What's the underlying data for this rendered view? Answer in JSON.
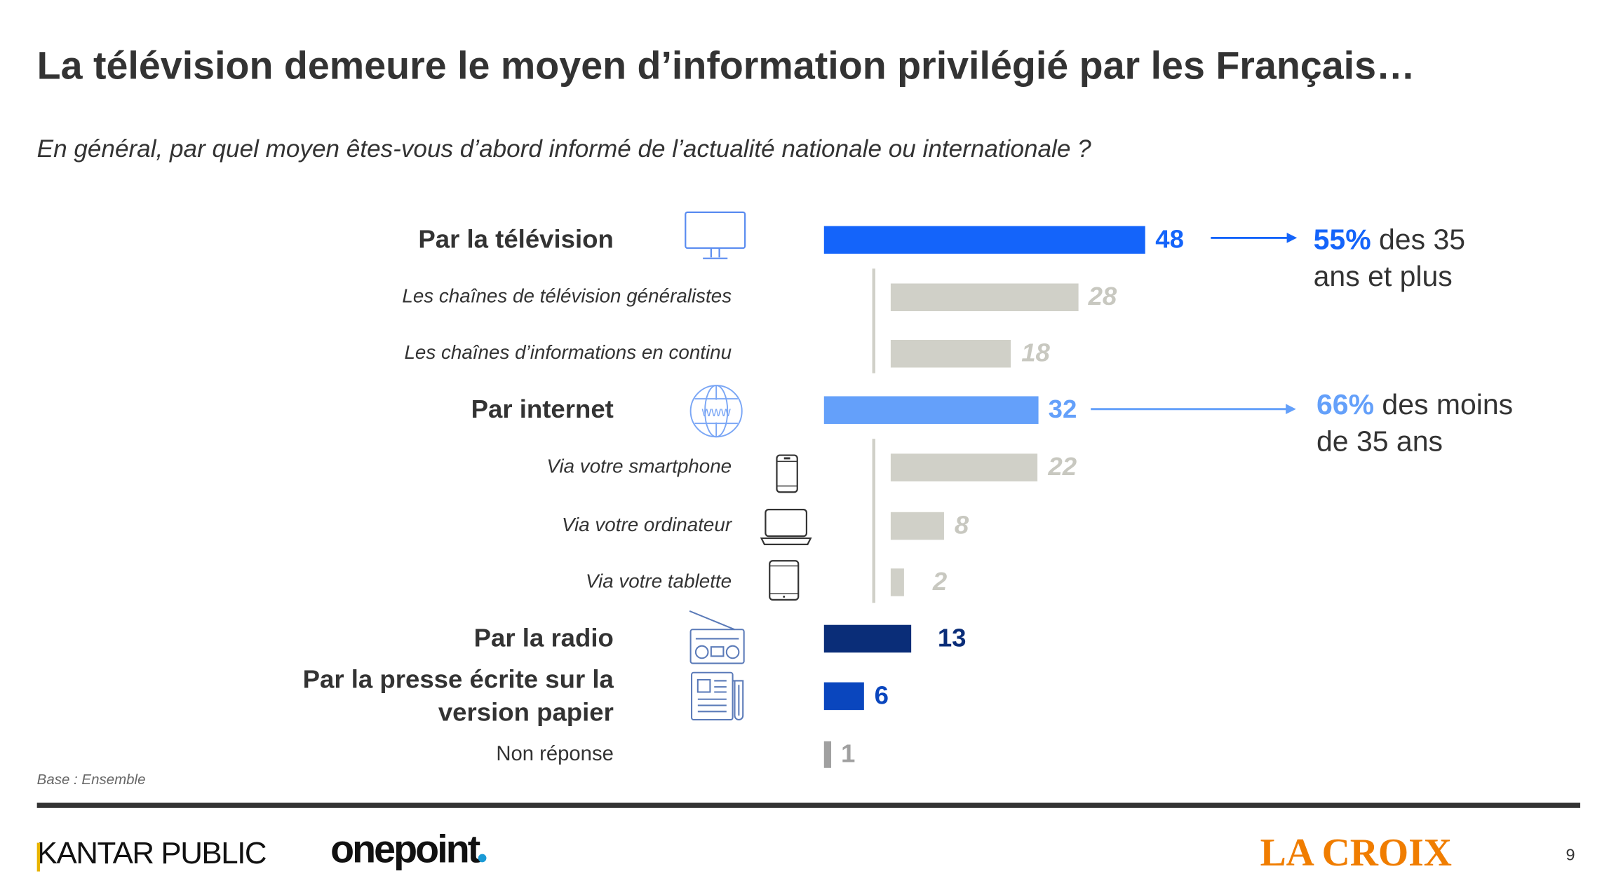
{
  "title": "La télévision demeure le moyen d’information privilégié par les Français…",
  "subtitle": "En général, par quel moyen êtes-vous d’abord informé de l’actualité nationale ou internationale ?",
  "chart_data": {
    "type": "bar",
    "orientation": "horizontal",
    "title": "En général, par quel moyen êtes-vous d’abord informé de l’actualité nationale ou internationale ?",
    "unit": "%",
    "categories": [
      {
        "label": "Par la télévision",
        "value": 48,
        "level": "main",
        "color": "#1464fa",
        "icon": "television-icon"
      },
      {
        "label": "Les chaînes de télévision généralistes",
        "value": 28,
        "level": "sub",
        "color": "#d0d0c8"
      },
      {
        "label": "Les chaînes d’informations en continu",
        "value": 18,
        "level": "sub",
        "color": "#d0d0c8"
      },
      {
        "label": "Par internet",
        "value": 32,
        "level": "main",
        "color": "#64a0fa",
        "icon": "globe-www-icon"
      },
      {
        "label": "Via votre smartphone",
        "value": 22,
        "level": "sub",
        "color": "#d0d0c8",
        "icon": "smartphone-icon"
      },
      {
        "label": "Via votre ordinateur",
        "value": 8,
        "level": "sub",
        "color": "#d0d0c8",
        "icon": "laptop-icon"
      },
      {
        "label": "Via votre tablette",
        "value": 2,
        "level": "sub",
        "color": "#d0d0c8",
        "icon": "tablet-icon"
      },
      {
        "label": "Par la radio",
        "value": 13,
        "level": "main",
        "color": "#0a2d78",
        "icon": "radio-icon"
      },
      {
        "label": "Par la presse écrite sur la version papier",
        "value": 6,
        "level": "main",
        "color": "#0a46be",
        "icon": "newspaper-icon"
      },
      {
        "label": "Non réponse",
        "value": 1,
        "level": "nr",
        "color": "#a0a0a0"
      }
    ],
    "annotations": [
      {
        "highlight": "55%",
        "text": "des 35 ans et plus",
        "line1": "des 35",
        "line2": "ans et plus",
        "target": "Par la télévision",
        "color": "#1464fa"
      },
      {
        "highlight": "66%",
        "text": "des moins de 35 ans",
        "line1": "des moins",
        "line2": "de 35 ans",
        "target": "Par internet",
        "color": "#64a0fa"
      }
    ]
  },
  "footer": {
    "base": "Base : Ensemble",
    "logo_kantar": "KANTAR PUBLIC",
    "logo_onepoint": "onepoint",
    "logo_lacroix": "LA CROIX",
    "page_number": "9"
  }
}
